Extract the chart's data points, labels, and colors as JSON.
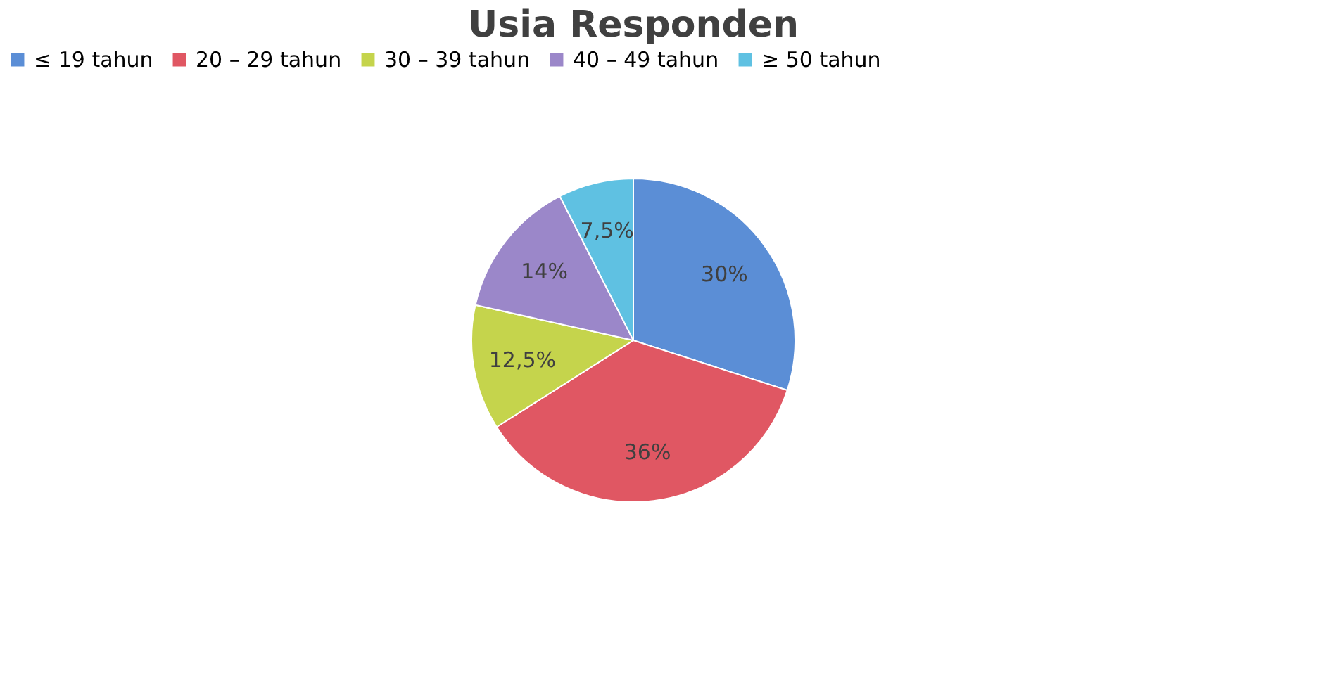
{
  "chart_data": {
    "type": "pie",
    "title": "Usia Responden",
    "categories": [
      "≤ 19 tahun",
      "20 – 29 tahun",
      "30 – 39 tahun",
      "40 – 49 tahun",
      "≥ 50 tahun"
    ],
    "values": [
      30,
      36,
      12.5,
      14,
      7.5
    ],
    "value_labels": [
      "30%",
      "36%",
      "12,5%",
      "14%",
      "7,5%"
    ],
    "colors": [
      "#5b8ed6",
      "#e05763",
      "#c5d44c",
      "#9b87c9",
      "#5fc1e2"
    ],
    "legend": "top"
  }
}
